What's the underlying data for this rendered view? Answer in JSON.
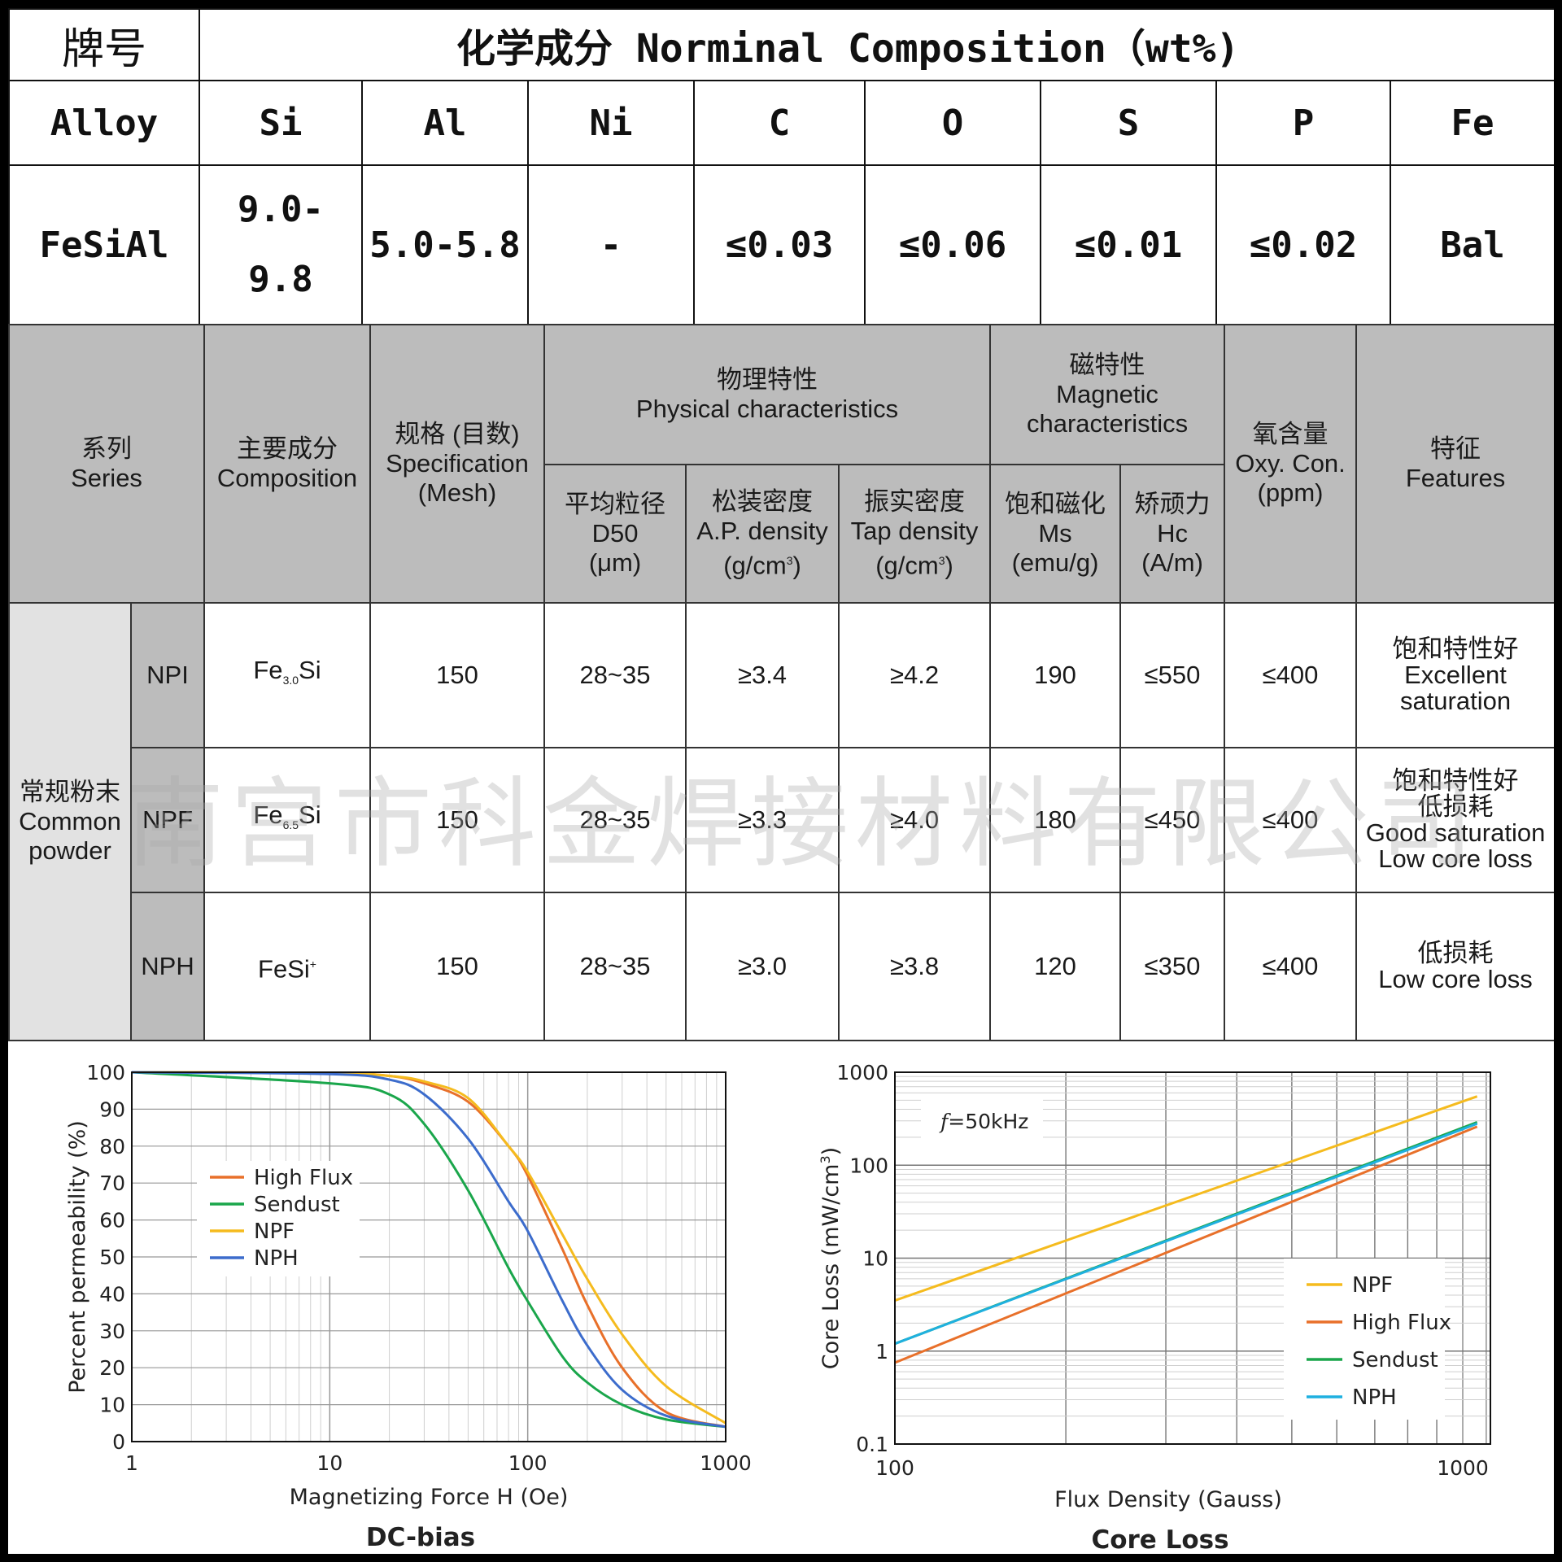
{
  "composition_table": {
    "grade_label": "牌号",
    "title": "化学成分 Norminal Composition（wt%)",
    "headers": [
      "Alloy",
      "Si",
      "Al",
      "Ni",
      "C",
      "O",
      "S",
      "P",
      "Fe"
    ],
    "row": {
      "alloy": "FeSiAl",
      "si_line1": "9.0-",
      "si_line2": "9.8",
      "al": "5.0-5.8",
      "ni": "-",
      "c": "≤0.03",
      "o": "≤0.06",
      "s": "≤0.01",
      "p": "≤0.02",
      "fe": "Bal"
    }
  },
  "properties_table": {
    "header": {
      "series_cn": "系列",
      "series_en": "Series",
      "comp_cn": "主要成分",
      "comp_en": "Composition",
      "spec_cn": "规格 (目数)",
      "spec_en": "Specification",
      "spec_en2": "(Mesh)",
      "phys_cn": "物理特性",
      "phys_en": "Physical characteristics",
      "mag_cn": "磁特性",
      "mag_en": "Magnetic",
      "mag_en2": "characteristics",
      "oxy_cn": "氧含量",
      "oxy_en": "Oxy. Con.",
      "oxy_en2": "(ppm)",
      "feat_cn": "特征",
      "feat_en": "Features",
      "d50_cn": "平均粒径",
      "d50_en": "D50",
      "d50_unit": "(μm)",
      "ap_cn": "松装密度",
      "ap_en": "A.P. density",
      "ap_unit": "(g/cm",
      "ap_unit_sup": "3",
      "ap_unit_end": ")",
      "tap_cn": "振实密度",
      "tap_en": "Tap density",
      "tap_unit": "(g/cm",
      "tap_unit_sup": "3",
      "tap_unit_end": ")",
      "ms_cn": "饱和磁化",
      "ms_en": "Ms",
      "ms_unit": "(emu/g)",
      "hc_cn": "矫顽力",
      "hc_en": "Hc",
      "hc_unit": "(A/m)"
    },
    "group_cn": "常规粉末",
    "group_en1": "Common",
    "group_en2": "powder",
    "rows": [
      {
        "grade": "NPI",
        "comp_base": "Fe",
        "comp_sub": "3.0",
        "comp_tail": "Si",
        "comp_sup": "",
        "spec": "150",
        "d50": "28~35",
        "ap": "≥3.4",
        "tap": "≥4.2",
        "ms": "190",
        "hc": "≤550",
        "oxy": "≤400",
        "feat_cn": "饱和特性好",
        "feat_cn2": "",
        "feat_en1": "Excellent",
        "feat_en2": "saturation"
      },
      {
        "grade": "NPF",
        "comp_base": "Fe",
        "comp_sub": "6.5",
        "comp_tail": "Si",
        "comp_sup": "",
        "spec": "150",
        "d50": "28~35",
        "ap": "≥3.3",
        "tap": "≥4.0",
        "ms": "180",
        "hc": "≤450",
        "oxy": "≤400",
        "feat_cn": "饱和特性好",
        "feat_cn2": "低损耗",
        "feat_en1": "Good saturation",
        "feat_en2": "Low core loss"
      },
      {
        "grade": "NPH",
        "comp_base": "FeSi",
        "comp_sub": "",
        "comp_tail": "",
        "comp_sup": "+",
        "spec": "150",
        "d50": "28~35",
        "ap": "≥3.0",
        "tap": "≥3.8",
        "ms": "120",
        "hc": "≤350",
        "oxy": "≤400",
        "feat_cn": "低损耗",
        "feat_cn2": "",
        "feat_en1": "Low core loss",
        "feat_en2": ""
      }
    ]
  },
  "watermark": "南宫市科金焊接材料有限公司",
  "chart_data": [
    {
      "type": "line",
      "title": "DC-bias",
      "xlabel": "Magnetizing Force H (Oe)",
      "ylabel": "Percent  permeability (%)",
      "x_scale": "log",
      "xlim": [
        1,
        1000
      ],
      "ylim": [
        0,
        100
      ],
      "x_ticks": [
        "1",
        "10",
        "100",
        "1000"
      ],
      "y_ticks": [
        "0",
        "10",
        "20",
        "30",
        "40",
        "50",
        "60",
        "70",
        "80",
        "90",
        "100"
      ],
      "grid": true,
      "legend": "top-left",
      "series": [
        {
          "name": "High Flux",
          "color": "#e8702a",
          "x": [
            1,
            10,
            20,
            30,
            50,
            80,
            100,
            150,
            200,
            300,
            500,
            1000
          ],
          "y": [
            100,
            99.8,
            99,
            97,
            92,
            80,
            72,
            52,
            37,
            20,
            8,
            4
          ]
        },
        {
          "name": "Sendust",
          "color": "#1aa64b",
          "x": [
            1,
            10,
            20,
            30,
            50,
            80,
            100,
            150,
            200,
            300,
            500,
            1000
          ],
          "y": [
            100,
            97,
            94,
            86,
            68,
            47,
            38,
            23,
            16,
            10,
            6,
            4
          ]
        },
        {
          "name": "NPF",
          "color": "#f5bb1e",
          "x": [
            1,
            10,
            20,
            30,
            50,
            80,
            100,
            150,
            200,
            300,
            500,
            1000
          ],
          "y": [
            100,
            99.8,
            99,
            97.5,
            93,
            80,
            73,
            56,
            44,
            29,
            15,
            5
          ]
        },
        {
          "name": "NPH",
          "color": "#3c6ccc",
          "x": [
            1,
            10,
            20,
            30,
            50,
            80,
            100,
            150,
            200,
            300,
            500,
            1000
          ],
          "y": [
            100,
            99.5,
            98,
            94,
            82,
            65,
            57,
            38,
            26,
            14,
            7,
            4
          ]
        }
      ]
    },
    {
      "type": "line",
      "title": "Core Loss",
      "annotation_f": "f",
      "annotation_rest": "=50kHz",
      "xlabel": "Flux Density (Gauss)",
      "ylabel": "Core Loss (mW/cm",
      "ylabel_sup": "3",
      "ylabel_end": ")",
      "x_scale": "log",
      "y_scale": "log",
      "xlim": [
        100,
        1000
      ],
      "ylim": [
        0.1,
        1000
      ],
      "x_ticks": [
        "100",
        "1000"
      ],
      "y_ticks": [
        "0.1",
        "1",
        "10",
        "100",
        "1000"
      ],
      "grid": true,
      "legend": "bottom-right",
      "series": [
        {
          "name": "NPF",
          "color": "#f5bb1e",
          "x": [
            100,
            1060
          ],
          "y": [
            3.5,
            550
          ]
        },
        {
          "name": "High Flux",
          "color": "#e8702a",
          "x": [
            100,
            1060
          ],
          "y": [
            0.75,
            260
          ]
        },
        {
          "name": "Sendust",
          "color": "#1aa64b",
          "x": [
            100,
            1060
          ],
          "y": [
            1.2,
            290
          ]
        },
        {
          "name": "NPH",
          "color": "#1fb0e0",
          "x": [
            100,
            1060
          ],
          "y": [
            1.2,
            280
          ]
        }
      ]
    }
  ]
}
